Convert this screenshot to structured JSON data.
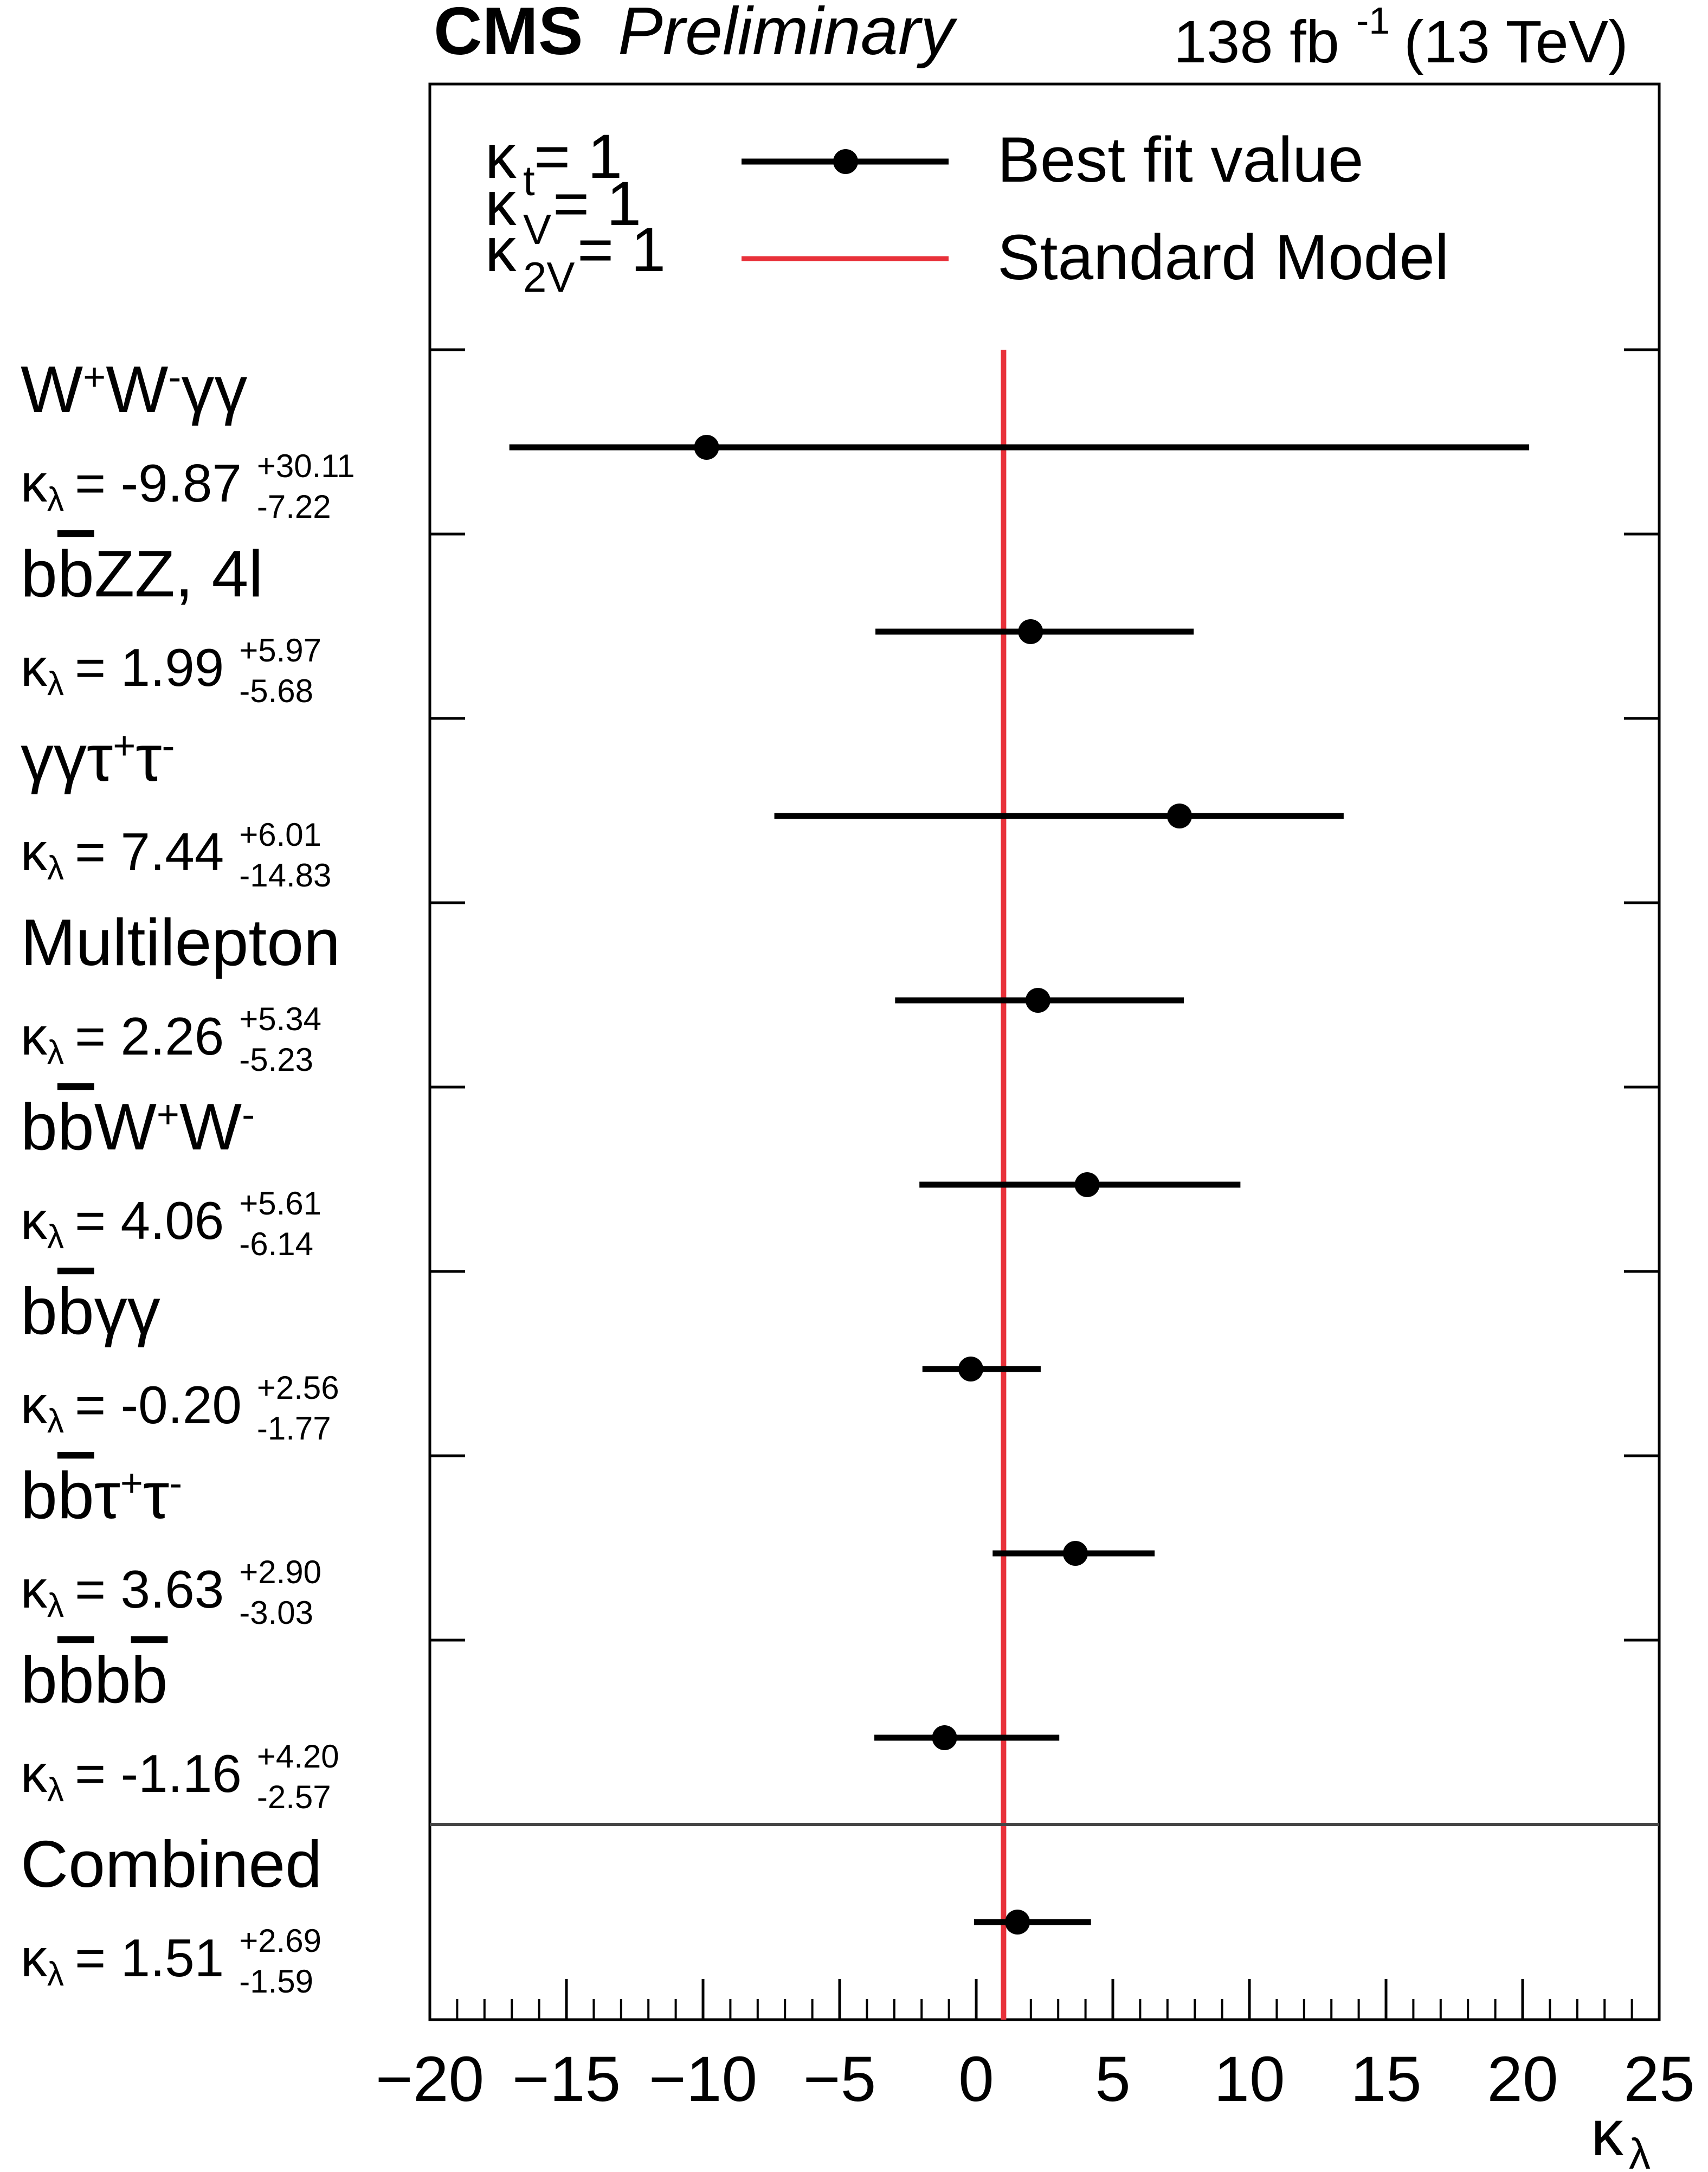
{
  "header": {
    "experiment": "CMS",
    "status": "Preliminary",
    "luminosity": "138 fb",
    "lumi_exponent": "-1",
    "energy": "(13 TeV)"
  },
  "legend": {
    "assumptions": [
      {
        "symbol": "κ",
        "sub": "t",
        "rest": " = 1"
      },
      {
        "symbol": "κ",
        "sub": "V",
        "rest": " = 1"
      },
      {
        "symbol": "κ",
        "sub": "2V",
        "rest": " = 1"
      }
    ],
    "best_fit_label": "Best fit value",
    "sm_label": "Standard Model"
  },
  "colors": {
    "sm_line": "#e8313a",
    "points": "#000000",
    "frame": "#000000",
    "separator": "#444444"
  },
  "chart_data": {
    "type": "scatter",
    "title": "CMS Preliminary",
    "xlabel_symbol": "κ",
    "xlabel_sub": "λ",
    "xlim": [
      -20,
      25
    ],
    "xticks": [
      -20,
      -15,
      -10,
      -5,
      0,
      5,
      10,
      15,
      20,
      25
    ],
    "xtick_labels": [
      "−20",
      "−15",
      "−10",
      "−5",
      "0",
      "5",
      "10",
      "15",
      "20",
      "25"
    ],
    "sm_value": 1,
    "channels": [
      {
        "name": [
          {
            "t": "W"
          },
          {
            "t": "+",
            "sup": true
          },
          {
            "t": "W"
          },
          {
            "t": "-",
            "sup": true
          },
          {
            "t": "γγ"
          }
        ],
        "value": -9.87,
        "val_text": "-9.87",
        "up": 30.11,
        "down": 7.22,
        "up_text": "+30.11",
        "down_text": "-7.22"
      },
      {
        "name": [
          {
            "t": "b"
          },
          {
            "t": "b",
            "bar": true
          },
          {
            "t": "ZZ, 4l"
          }
        ],
        "value": 1.99,
        "val_text": "1.99",
        "up": 5.97,
        "down": 5.68,
        "up_text": "+5.97",
        "down_text": "-5.68"
      },
      {
        "name": [
          {
            "t": "γγτ"
          },
          {
            "t": "+",
            "sup": true
          },
          {
            "t": "τ"
          },
          {
            "t": "-",
            "sup": true
          }
        ],
        "value": 7.44,
        "val_text": "7.44",
        "up": 6.01,
        "down": 14.83,
        "up_text": "+6.01",
        "down_text": "-14.83"
      },
      {
        "name": [
          {
            "t": "Multilepton"
          }
        ],
        "value": 2.26,
        "val_text": "2.26",
        "up": 5.34,
        "down": 5.23,
        "up_text": "+5.34",
        "down_text": "-5.23"
      },
      {
        "name": [
          {
            "t": "b"
          },
          {
            "t": "b",
            "bar": true
          },
          {
            "t": "W"
          },
          {
            "t": "+",
            "sup": true
          },
          {
            "t": "W"
          },
          {
            "t": "-",
            "sup": true
          }
        ],
        "value": 4.06,
        "val_text": "4.06",
        "up": 5.61,
        "down": 6.14,
        "up_text": "+5.61",
        "down_text": "-6.14"
      },
      {
        "name": [
          {
            "t": "b"
          },
          {
            "t": "b",
            "bar": true
          },
          {
            "t": "γγ"
          }
        ],
        "value": -0.2,
        "val_text": "-0.20",
        "up": 2.56,
        "down": 1.77,
        "up_text": "+2.56",
        "down_text": "-1.77"
      },
      {
        "name": [
          {
            "t": "b"
          },
          {
            "t": "b",
            "bar": true
          },
          {
            "t": "τ"
          },
          {
            "t": "+",
            "sup": true
          },
          {
            "t": "τ"
          },
          {
            "t": "-",
            "sup": true
          }
        ],
        "value": 3.63,
        "val_text": "3.63",
        "up": 2.9,
        "down": 3.03,
        "up_text": "+2.90",
        "down_text": "-3.03"
      },
      {
        "name": [
          {
            "t": "b"
          },
          {
            "t": "b",
            "bar": true
          },
          {
            "t": "b"
          },
          {
            "t": "b",
            "bar": true
          }
        ],
        "value": -1.16,
        "val_text": "-1.16",
        "up": 4.2,
        "down": 2.57,
        "up_text": "+4.20",
        "down_text": "-2.57"
      },
      {
        "name": [
          {
            "t": "Combined"
          }
        ],
        "value": 1.51,
        "val_text": "1.51",
        "up": 2.69,
        "down": 1.59,
        "up_text": "+2.69",
        "down_text": "-1.59"
      }
    ]
  }
}
